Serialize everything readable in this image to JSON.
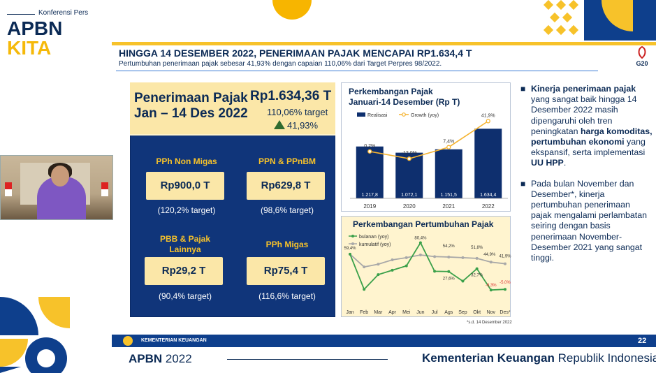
{
  "header": {
    "kicker": "Konferensi Pers",
    "brand_line1": "APBN",
    "brand_line2": "KITA"
  },
  "slide": {
    "title": "HINGGA 14 DESEMBER 2022, PENERIMAAN PAJAK MENCAPAI RP1.634,4 T",
    "subtitle": "Pertumbuhan penerimaan pajak sebesar 41,93% dengan capaian 110,06% dari Target Perpres 98/2022.",
    "g20_label": "G20",
    "summary": {
      "title_line1": "Penerimaan Pajak",
      "title_line2": "Jan – 14 Des 2022",
      "value": "Rp1.634,36 T",
      "target_pct": "110,06% target",
      "growth_pct": "41,93%"
    },
    "taxes": [
      {
        "label": "PPh Non Migas",
        "value": "Rp900,0 T",
        "pct": "(120,2% target)"
      },
      {
        "label": "PPN & PPnBM",
        "value": "Rp629,8 T",
        "pct": "(98,6% target)"
      },
      {
        "label_line1": "PBB & Pajak",
        "label_line2": "Lainnya",
        "value": "Rp29,2 T",
        "pct": "(90,4% target)"
      },
      {
        "label": "PPh Migas",
        "value": "Rp75,4 T",
        "pct": "(116,6% target)"
      }
    ],
    "chart1_title_line1": "Perkembangan Pajak",
    "chart1_title_line2": "Januari-14 Desember (Rp T)",
    "chart1_legend_bar": "Realisasi",
    "chart1_legend_line": "Growth (yoy)",
    "chart2_title": "Perkembangan Pertumbuhan Pajak",
    "chart2_legend_a": "bulanan (yoy)",
    "chart2_legend_b": "kumulatif (yoy)",
    "footnote": "*s.d. 14 Desember 2022",
    "bullets": [
      {
        "bold1": "Kinerja penerimaan pajak",
        "text1": " yang sangat baik hingga 14 Desember 2022 masih dipengaruhi oleh tren peningkatan ",
        "bold2": "harga komoditas, pertumbuhan ekonomi",
        "text2": " yang ekspansif, serta implementasi ",
        "bold3": "UU HPP",
        "text3": "."
      },
      {
        "text1": "Pada bulan November dan Desember*, kinerja pertumbuhan penerimaan pajak mengalami perlambatan seiring dengan basis penerimaan November-Desember 2021 yang sangat tinggi."
      }
    ]
  },
  "footer": {
    "ministry_small": "KEMENTERIAN KEUANGAN",
    "page": "22",
    "apbn_year_bold": "APBN",
    "apbn_year": " 2022",
    "ministry_bold": "Kementerian Keuangan",
    "ministry_rest": " Republik Indonesia"
  },
  "colors": {
    "navy": "#0b2a55",
    "panel_blue": "#10357a",
    "bar_blue": "#0e2f6e",
    "gold": "#f7c22a",
    "cream": "#fbe7a8",
    "growth_orange": "#f5b330",
    "green_line": "#3aa04a",
    "grey_line": "#a8a8a8"
  },
  "icons": [
    "up-triangle-icon",
    "g20-logo-icon",
    "ministry-emblem-icon"
  ],
  "chart_data": [
    {
      "type": "bar",
      "title": "Perkembangan Pajak Januari-14 Desember (Rp T)",
      "categories": [
        "2019",
        "2020",
        "2021",
        "2022"
      ],
      "series": [
        {
          "name": "Realisasi",
          "values": [
            1217.8,
            1072.1,
            1151.5,
            1634.4
          ],
          "labels": [
            "1.217,8",
            "1.072,1",
            "1.151,5",
            "1.634,4"
          ]
        },
        {
          "name": "Growth (yoy)",
          "type": "line",
          "values": [
            0.2,
            -12.0,
            7.4,
            41.9
          ],
          "labels": [
            "0,2%",
            "-12,0%",
            "7,4%",
            "41,9%"
          ]
        }
      ],
      "ylim": [
        0,
        2000
      ],
      "legend": "top-left"
    },
    {
      "type": "line",
      "title": "Perkembangan Pertumbuhan Pajak",
      "categories": [
        "Jan",
        "Feb",
        "Mar",
        "Apr",
        "Mei",
        "Jun",
        "Jul",
        "Ags",
        "Sep",
        "Okt",
        "Nov",
        "Des*"
      ],
      "series": [
        {
          "name": "bulanan (yoy)",
          "values": [
            59.4,
            -5,
            22,
            30,
            38,
            80.4,
            28,
            27.6,
            10,
            32.7,
            -6.3,
            -5.0
          ]
        },
        {
          "name": "kumulatif (yoy)",
          "values": [
            59.4,
            36,
            41,
            49,
            53,
            58,
            55,
            54.2,
            53,
            51.8,
            44.9,
            41.9
          ]
        }
      ],
      "annotations": [
        "59,4%",
        "80,4%",
        "54,2%",
        "51,8%",
        "44,9%",
        "41,9%",
        "27,6%",
        "32,7%",
        "-6,3%",
        "-5,0%"
      ],
      "ylim": [
        -15,
        90
      ],
      "legend": "top-left"
    }
  ]
}
